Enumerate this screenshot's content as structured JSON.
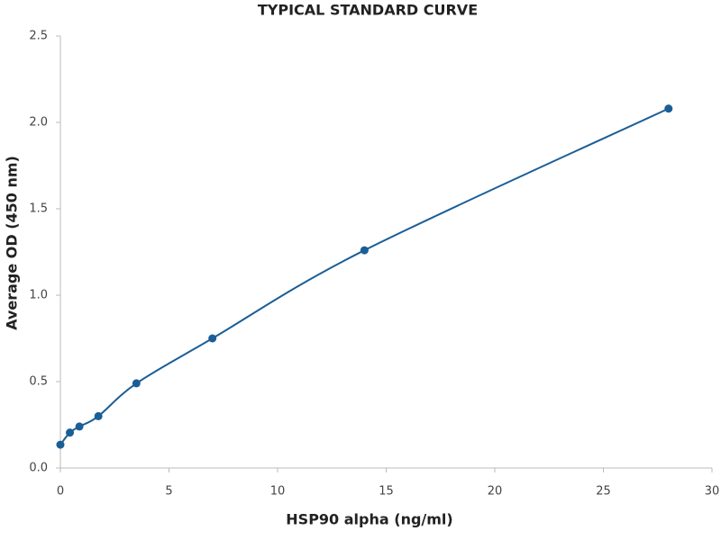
{
  "chart_data": {
    "type": "line",
    "title": "TYPICAL STANDARD CURVE",
    "x_label": "HSP90 alpha (ng/ml)",
    "y_label": "Average OD (450 nm)",
    "x": [
      0,
      0.4375,
      0.875,
      1.75,
      3.5,
      7,
      14,
      28
    ],
    "series": [
      {
        "name": "HSP90 alpha",
        "color": "#1b5e96",
        "values": [
          0.135,
          0.205,
          0.24,
          0.3,
          0.49,
          0.75,
          1.26,
          2.08
        ]
      }
    ],
    "xlim": [
      0,
      30
    ],
    "xticks": [
      0,
      5,
      10,
      15,
      20,
      25,
      30
    ],
    "ylim": [
      0,
      2.5
    ],
    "yticks": [
      {
        "value": 0,
        "label": "0.0"
      },
      0.5,
      {
        "value": 1,
        "label": "1.0"
      },
      1.5,
      {
        "value": 2,
        "label": "2.0"
      },
      2.5
    ],
    "smooth": true,
    "grid": false
  }
}
